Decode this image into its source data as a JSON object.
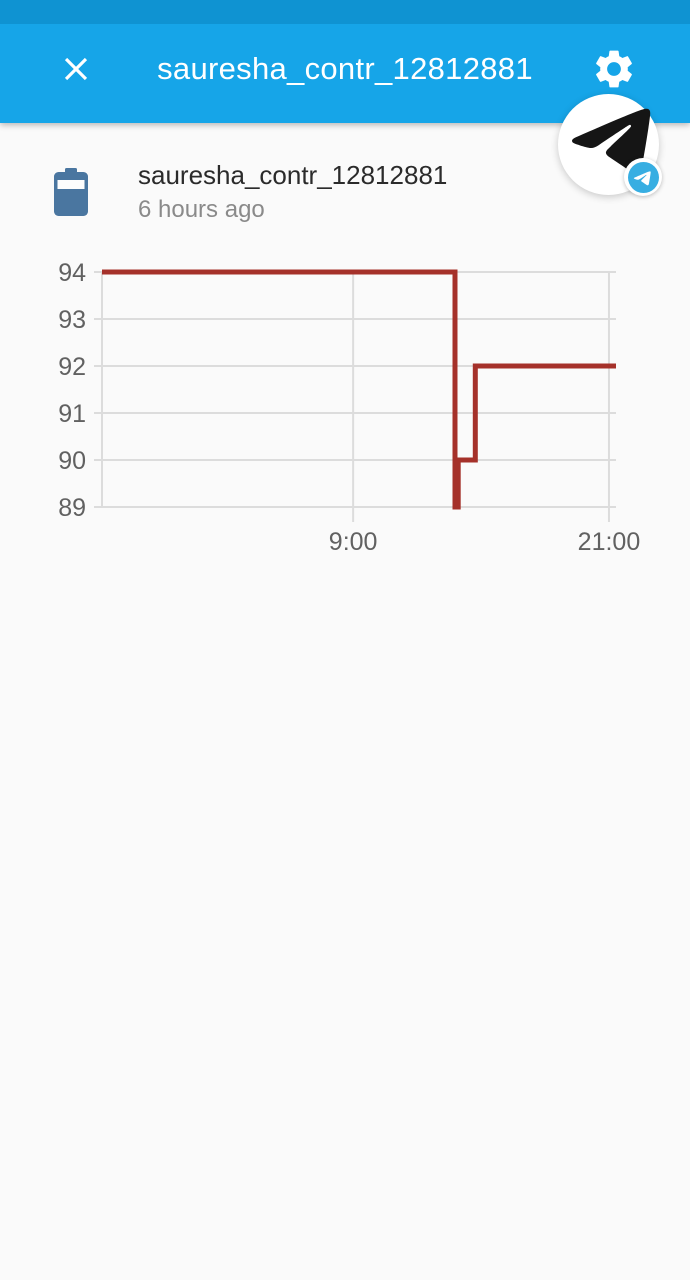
{
  "header": {
    "title": "sauresha_contr_12812881"
  },
  "device": {
    "name": "sauresha_contr_12812881",
    "last_seen": "6 hours ago"
  },
  "icons": {
    "close": "close-x",
    "settings": "gear",
    "device": "battery",
    "avatar": "paper-plane",
    "badge": "telegram-logo"
  },
  "colors": {
    "header_bg": "#16a5e8",
    "statusbar_bg": "#0f93d2",
    "header_text": "#ffffff",
    "line_red": "#a5312a",
    "battery_blue": "#4a76a0",
    "telegram_blue": "#37aee2",
    "title_text": "#2b2b2b",
    "subtitle_text": "#8a8a8a",
    "page_bg": "#fafafa"
  },
  "chart_data": {
    "type": "line",
    "step": true,
    "title": "",
    "xlabel": "",
    "ylabel": "",
    "xlim": [
      -2.78,
      21.33
    ],
    "ylim": [
      89,
      94
    ],
    "x_unit": "hour_of_day",
    "grid": true,
    "legend": "none",
    "series": [
      {
        "name": "sauresha_contr_12812881 battery level",
        "color": "#a5312a",
        "points": [
          [
            -2.78,
            94
          ],
          [
            13.78,
            94
          ],
          [
            13.78,
            89
          ],
          [
            13.93,
            89
          ],
          [
            13.93,
            90
          ],
          [
            14.73,
            90
          ],
          [
            14.73,
            92
          ],
          [
            21.33,
            92
          ]
        ]
      }
    ],
    "yticks": [
      {
        "value": 89,
        "label": "89"
      },
      {
        "value": 90,
        "label": "90"
      },
      {
        "value": 91,
        "label": "91"
      },
      {
        "value": 92,
        "label": "92"
      },
      {
        "value": 93,
        "label": "93"
      },
      {
        "value": 94,
        "label": "94"
      }
    ],
    "xticks": [
      {
        "value": 9,
        "label": "9:00"
      },
      {
        "value": 21,
        "label": "21:00"
      }
    ],
    "colors": {
      "grid": "#dcdcdc",
      "tick_label": "#616161"
    }
  }
}
